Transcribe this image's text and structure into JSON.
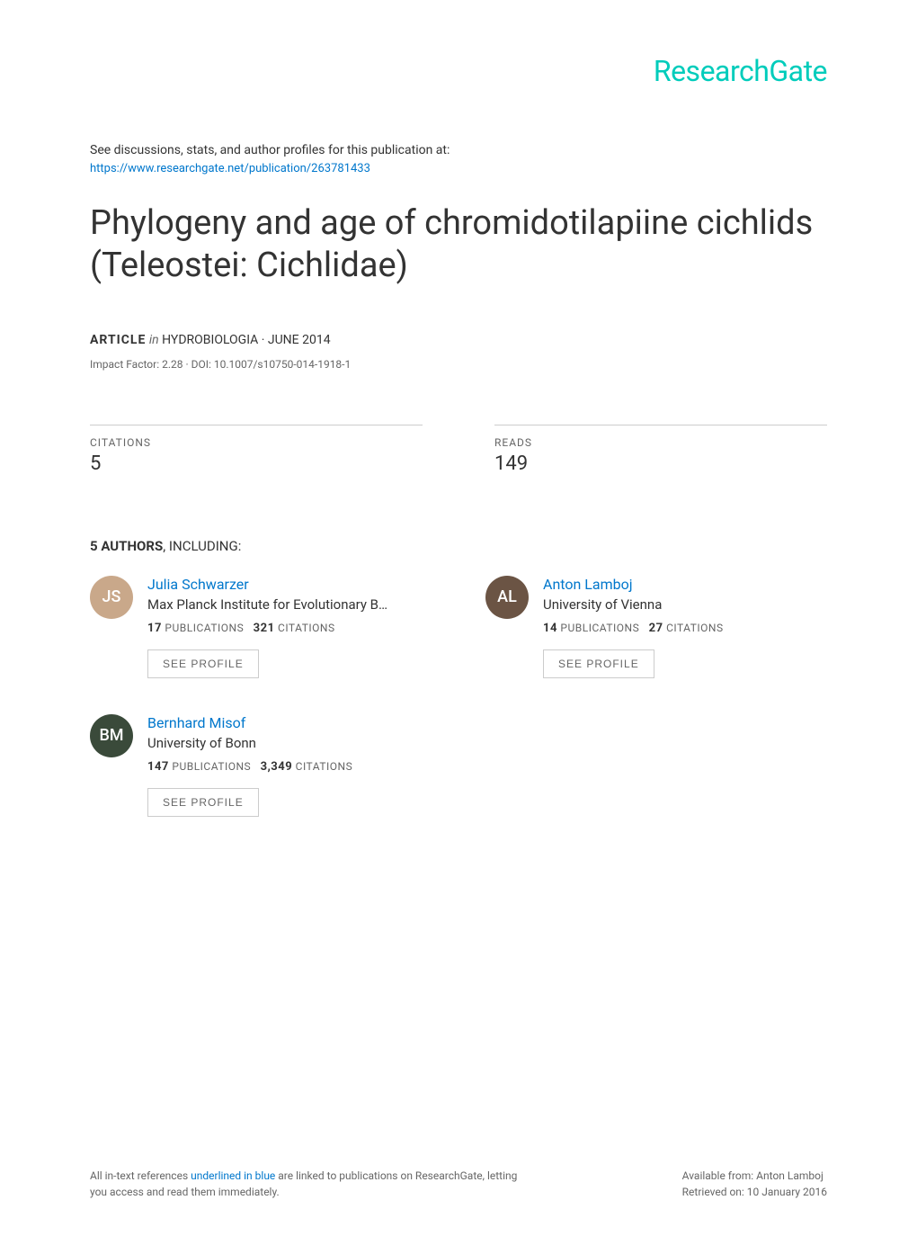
{
  "logo": "ResearchGate",
  "intro": {
    "text": "See discussions, stats, and author profiles for this publication at:",
    "link": "https://www.researchgate.net/publication/263781433"
  },
  "title": "Phylogeny and age of chromidotilapiine cichlids (Teleostei: Cichlidae)",
  "meta": {
    "type_label": "ARTICLE",
    "in_label": "in",
    "journal": "HYDROBIOLOGIA · JUNE 2014",
    "impact": "Impact Factor: 2.28 · DOI: 10.1007/s10750-014-1918-1"
  },
  "stats": {
    "citations_label": "CITATIONS",
    "citations_value": "5",
    "reads_label": "READS",
    "reads_value": "149"
  },
  "authors_header": {
    "count": "5 AUTHORS",
    "suffix": ", INCLUDING:"
  },
  "authors": [
    {
      "name": "Julia Schwarzer",
      "affiliation": "Max Planck Institute for Evolutionary B…",
      "pubs": "17",
      "pubs_label": "PUBLICATIONS",
      "cits": "321",
      "cits_label": "CITATIONS",
      "avatar_bg": "#c9a88a",
      "initials": "JS"
    },
    {
      "name": "Anton Lamboj",
      "affiliation": "University of Vienna",
      "pubs": "14",
      "pubs_label": "PUBLICATIONS",
      "cits": "27",
      "cits_label": "CITATIONS",
      "avatar_bg": "#6b5444",
      "initials": "AL"
    },
    {
      "name": "Bernhard Misof",
      "affiliation": "University of Bonn",
      "pubs": "147",
      "pubs_label": "PUBLICATIONS",
      "cits": "3,349",
      "cits_label": "CITATIONS",
      "avatar_bg": "#3a4a3a",
      "initials": "BM"
    }
  ],
  "see_profile_label": "SEE PROFILE",
  "footer": {
    "left_pre": "All in-text references ",
    "left_blue": "underlined in blue",
    "left_post": " are linked to publications on ResearchGate, letting you access and read them immediately.",
    "right_line1": "Available from: Anton Lamboj",
    "right_line2": "Retrieved on: 10 January 2016"
  },
  "colors": {
    "brand": "#00ccbb",
    "link": "#0077cc",
    "text": "#333333",
    "muted": "#666666",
    "border": "#cccccc",
    "background": "#ffffff"
  },
  "typography": {
    "logo_fontsize": 32,
    "title_fontsize": 38,
    "body_fontsize": 14,
    "small_fontsize": 12,
    "author_name_fontsize": 16,
    "stat_value_fontsize": 22
  }
}
